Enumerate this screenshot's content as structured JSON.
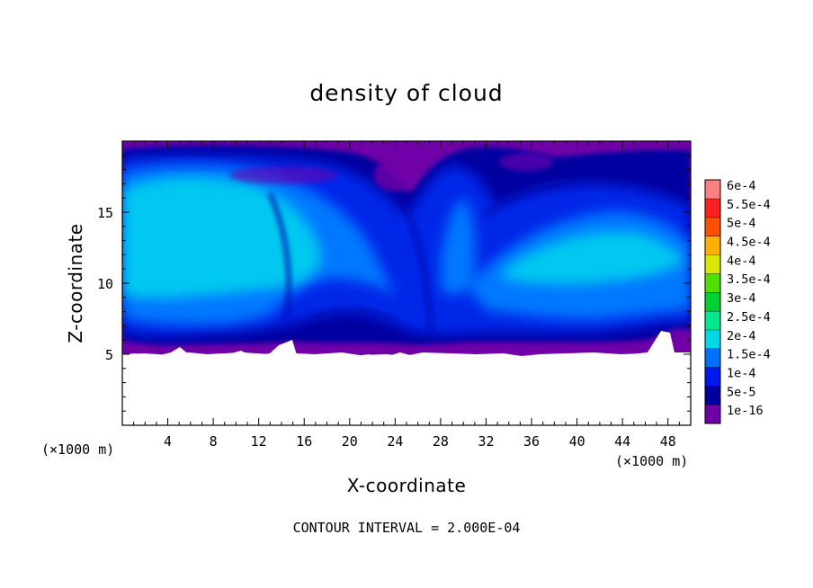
{
  "chart_data": {
    "type": "heatmap",
    "title": "density of cloud",
    "xlabel": "X-coordinate",
    "ylabel": "Z-coordinate",
    "x_unit": "(×1000 m)",
    "y_unit": "(×1000 m)",
    "xlim": [
      0,
      50
    ],
    "ylim": [
      0,
      20
    ],
    "x_ticks": [
      4,
      8,
      12,
      16,
      20,
      24,
      28,
      32,
      36,
      40,
      44,
      48
    ],
    "y_ticks": [
      5,
      10,
      15
    ],
    "footer": "CONTOUR INTERVAL = 2.000E-04",
    "grid": false,
    "legend": {
      "placement": "right",
      "levels": [
        {
          "label": "1e-16",
          "color": "#7000a8"
        },
        {
          "label": "5e-5",
          "color": "#0000a0"
        },
        {
          "label": "1e-4",
          "color": "#0018f0"
        },
        {
          "label": "1.5e-4",
          "color": "#0070ff"
        },
        {
          "label": "2e-4",
          "color": "#00d8e8"
        },
        {
          "label": "2.5e-4",
          "color": "#00e890"
        },
        {
          "label": "3e-4",
          "color": "#00d030"
        },
        {
          "label": "3.5e-4",
          "color": "#50e000"
        },
        {
          "label": "4e-4",
          "color": "#d8e800"
        },
        {
          "label": "4.5e-4",
          "color": "#ffb000"
        },
        {
          "label": "5e-4",
          "color": "#ff5000"
        },
        {
          "label": "5.5e-4",
          "color": "#ff2020"
        },
        {
          "label": "6e-4",
          "color": "#ff8080"
        }
      ]
    },
    "field_description": {
      "cloud_base_z": 5.5,
      "cloud_top_z": 19.5,
      "max_level_shown": "2e-4"
    }
  }
}
